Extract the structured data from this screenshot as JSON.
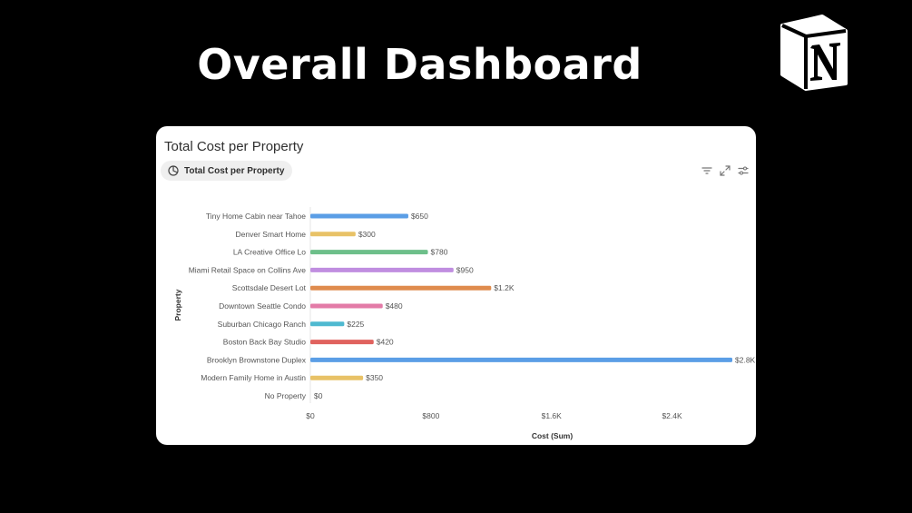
{
  "hero": {
    "title": "Overall Dashboard"
  },
  "card": {
    "title": "Total Cost per Property",
    "view_label": "Total Cost per Property",
    "icons": [
      "pie-chart-icon",
      "filter-icon",
      "expand-icon",
      "settings-sliders-icon"
    ]
  },
  "colors": {
    "background": "#000000",
    "card": "#ffffff",
    "text": "#2f2f2f"
  },
  "chart_data": {
    "type": "bar",
    "orientation": "horizontal",
    "xlabel": "Cost (Sum)",
    "ylabel": "Property",
    "xlim": [
      0,
      2800
    ],
    "xticks": [
      0,
      800,
      1600,
      2400
    ],
    "xtick_labels": [
      "$0",
      "$800",
      "$1.6K",
      "$2.4K"
    ],
    "grid": false,
    "categories": [
      "Tiny Home Cabin near Tahoe",
      "Denver Smart Home",
      "LA Creative Office Lo",
      "Miami Retail Space on Collins Ave",
      "Scottsdale Desert Lot",
      "Downtown Seattle Condo",
      "Suburban Chicago Ranch",
      "Boston Back Bay Studio",
      "Brooklyn Brownstone Duplex",
      "Modern Family Home in Austin",
      "No Property"
    ],
    "values": [
      650,
      300,
      780,
      950,
      1200,
      480,
      225,
      420,
      2800,
      350,
      0
    ],
    "value_labels": [
      "$650",
      "$300",
      "$780",
      "$950",
      "$1.2K",
      "$480",
      "$225",
      "$420",
      "$2.8K",
      "$350",
      "$0"
    ],
    "bar_colors": [
      "#5b9ee6",
      "#e8c267",
      "#6dbf8a",
      "#c08ee0",
      "#df8c4e",
      "#e37ba7",
      "#4fb9d0",
      "#e0625e",
      "#5b9ee6",
      "#e8c267",
      "#cccccc"
    ]
  }
}
